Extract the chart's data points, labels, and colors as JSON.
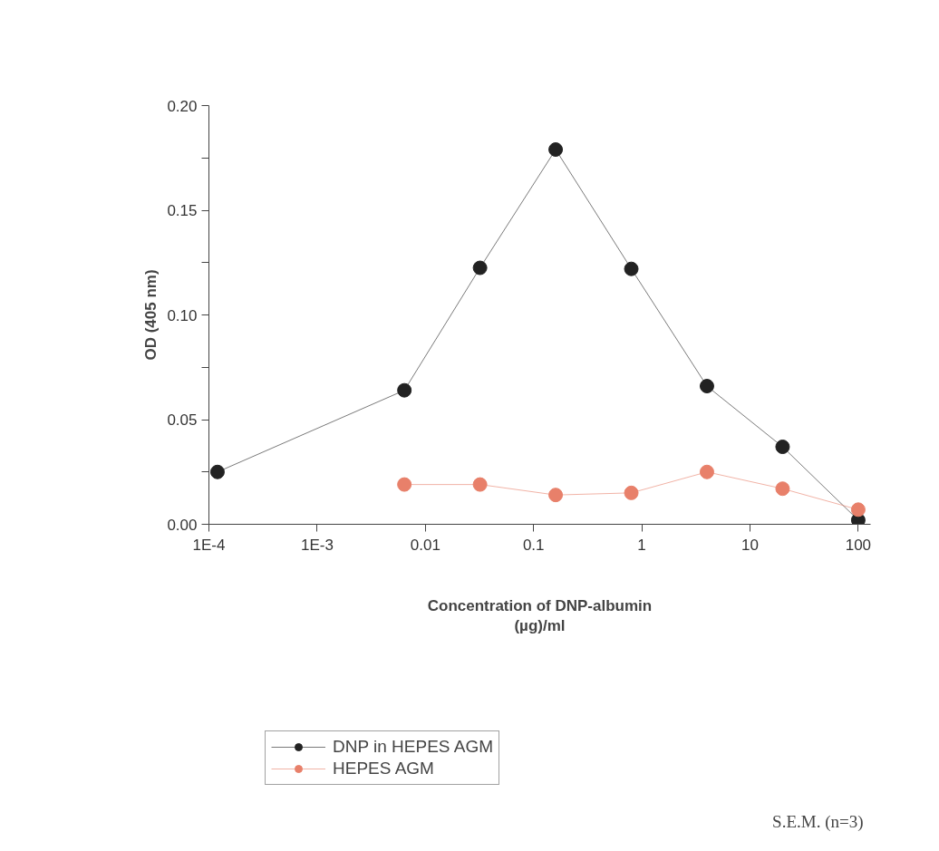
{
  "chart_data": {
    "type": "line",
    "xlabel": "Concentration of DNP-albumin\n(µg)/ml",
    "ylabel": "OD (405 nm)",
    "x": [
      0.00012,
      0.0064,
      0.032,
      0.16,
      0.8,
      4,
      20,
      100
    ],
    "series": [
      {
        "name": "DNP in HEPES AGM",
        "color": "#222222",
        "values": [
          0.025,
          0.064,
          0.1225,
          0.179,
          0.122,
          0.066,
          0.037,
          0.002
        ]
      },
      {
        "name": "HEPES AGM",
        "color": "#e8806a",
        "values": [
          null,
          0.019,
          0.019,
          0.014,
          0.015,
          0.025,
          0.017,
          0.007
        ]
      }
    ],
    "log": "x",
    "xlim": [
      0.0001,
      130
    ],
    "ylim": [
      0,
      0.2
    ],
    "xticks": [
      {
        "value": 0.0001,
        "label": "1E-4"
      },
      {
        "value": 0.001,
        "label": "1E-3"
      },
      0.01,
      0.1,
      1,
      10,
      100
    ],
    "yticks": [
      {
        "value": 0,
        "label": "0.00"
      },
      {
        "value": 0.025,
        "label": null
      },
      0.05,
      {
        "value": 0.075,
        "label": null
      },
      {
        "value": 0.1,
        "label": "0.10"
      },
      {
        "value": 0.125,
        "label": null
      },
      0.15,
      {
        "value": 0.175,
        "label": null
      },
      {
        "value": 0.2,
        "label": "0.20"
      }
    ],
    "grid": false,
    "legend": "bottom",
    "marker": "circle",
    "line_style": "solid",
    "annotations": [
      "S.E.M. (n=3)"
    ]
  }
}
